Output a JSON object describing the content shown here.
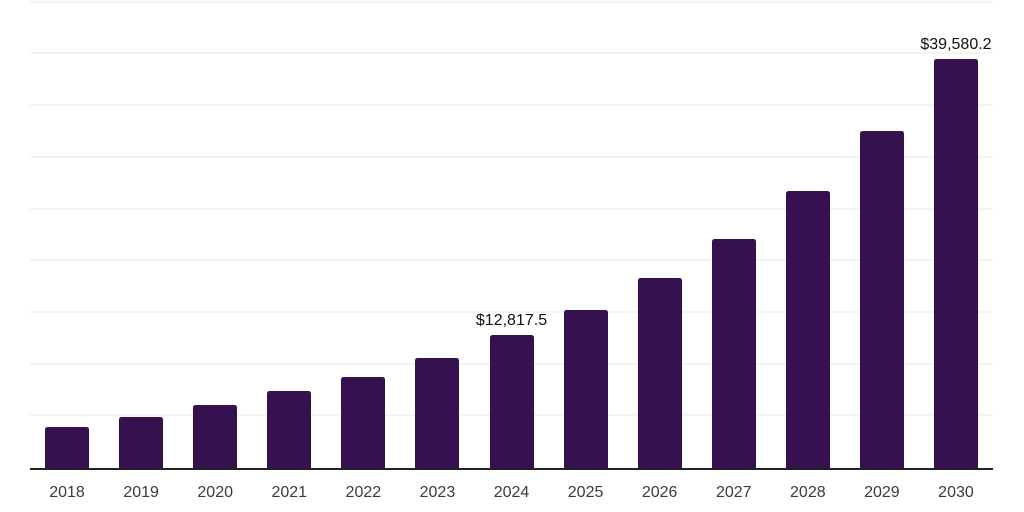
{
  "chart_data": {
    "type": "bar",
    "title": "",
    "xlabel": "",
    "ylabel": "",
    "categories": [
      "2018",
      "2019",
      "2020",
      "2021",
      "2022",
      "2023",
      "2024",
      "2025",
      "2026",
      "2027",
      "2028",
      "2029",
      "2030"
    ],
    "values": [
      3950,
      4900,
      6100,
      7400,
      8850,
      10650,
      12817.5,
      15250,
      18400,
      22150,
      26800,
      32550,
      39580.2
    ],
    "value_labels": [
      "",
      "",
      "",
      "",
      "",
      "",
      "$12,817.5",
      "",
      "",
      "",
      "",
      "",
      "$39,580.2"
    ],
    "labeled_points": [
      {
        "category": "2024",
        "label": "$12,817.5",
        "value": 12817.5
      },
      {
        "category": "2030",
        "label": "$39,580.2",
        "value": 39580.2
      }
    ],
    "ylim": [
      0,
      45260
    ],
    "gridline_interval": 5000,
    "grid": "horizontal",
    "legend": false,
    "y_axis_labels_visible": false,
    "colors": {
      "bar": "#36114f",
      "grid": "#f3f3f3",
      "axis": "#222222",
      "tick": "#3a3a3a",
      "value_label": "#111111",
      "background": "#ffffff"
    }
  }
}
